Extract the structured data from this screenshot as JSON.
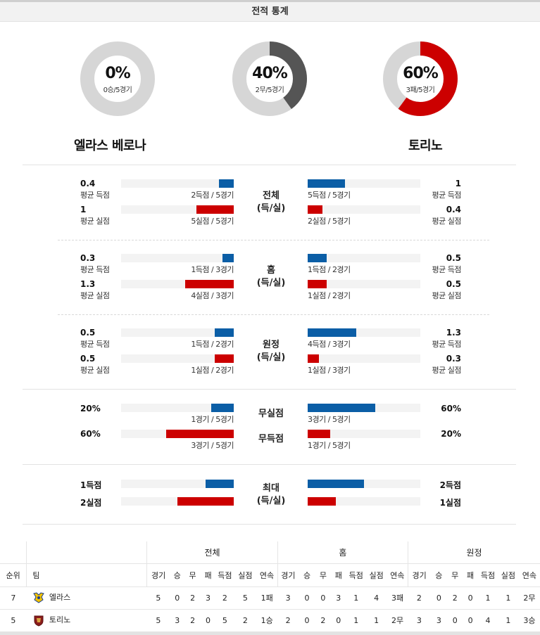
{
  "header": {
    "title": "전적 통계"
  },
  "donuts": [
    {
      "pct": "0%",
      "sub": "0승/5경기",
      "value": 0,
      "color": "#cccccc"
    },
    {
      "pct": "40%",
      "sub": "2무/5경기",
      "value": 0.4,
      "color": "#555555"
    },
    {
      "pct": "60%",
      "sub": "3패/5경기",
      "value": 0.6,
      "color": "#cc0000"
    }
  ],
  "teams": {
    "home": "엘라스 베로나",
    "away": "토리노"
  },
  "sections": {
    "total": {
      "label1": "전체",
      "label2": "(득/실)",
      "scored": {
        "home_val": "0.4",
        "home_cap": "평균 득점",
        "home_bar": "2득점 / 5경기",
        "home_frac": 0.13,
        "away_val": "1",
        "away_cap": "평균 득점",
        "away_bar": "5득점 / 5경기",
        "away_frac": 0.33
      },
      "conceded": {
        "home_val": "1",
        "home_cap": "평균 실점",
        "home_bar": "5실점 / 5경기",
        "home_frac": 0.33,
        "away_val": "0.4",
        "away_cap": "평균 실점",
        "away_bar": "2실점 / 5경기",
        "away_frac": 0.13
      }
    },
    "home": {
      "label1": "홈",
      "label2": "(득/실)",
      "scored": {
        "home_val": "0.3",
        "home_cap": "평균 득점",
        "home_bar": "1득점 / 3경기",
        "home_frac": 0.1,
        "away_val": "0.5",
        "away_cap": "평균 득점",
        "away_bar": "1득점 / 2경기",
        "away_frac": 0.17
      },
      "conceded": {
        "home_val": "1.3",
        "home_cap": "평균 실점",
        "home_bar": "4실점 / 3경기",
        "home_frac": 0.43,
        "away_val": "0.5",
        "away_cap": "평균 실점",
        "away_bar": "1실점 / 2경기",
        "away_frac": 0.17
      }
    },
    "away": {
      "label1": "원정",
      "label2": "(득/실)",
      "scored": {
        "home_val": "0.5",
        "home_cap": "평균 득점",
        "home_bar": "1득점 / 2경기",
        "home_frac": 0.17,
        "away_val": "1.3",
        "away_cap": "평균 득점",
        "away_bar": "4득점 / 3경기",
        "away_frac": 0.43
      },
      "conceded": {
        "home_val": "0.5",
        "home_cap": "평균 실점",
        "home_bar": "1실점 / 2경기",
        "home_frac": 0.17,
        "away_val": "0.3",
        "away_cap": "평균 실점",
        "away_bar": "1실점 / 3경기",
        "away_frac": 0.1
      }
    },
    "clean": {
      "label1": "무실점",
      "home_val": "20%",
      "home_bar": "1경기 / 5경기",
      "home_frac": 0.2,
      "away_val": "60%",
      "away_bar": "3경기 / 5경기",
      "away_frac": 0.6
    },
    "noscore": {
      "label1": "무득점",
      "home_val": "60%",
      "home_bar": "3경기 / 5경기",
      "home_frac": 0.6,
      "away_val": "20%",
      "away_bar": "1경기 / 5경기",
      "away_frac": 0.2
    },
    "max": {
      "label1": "최대",
      "label2": "(득/실)",
      "home_scored": "1득점",
      "home_conceded": "2실점",
      "away_scored": "2득점",
      "away_conceded": "1실점",
      "home_scored_frac": 0.25,
      "home_conceded_frac": 0.5,
      "away_scored_frac": 0.5,
      "away_conceded_frac": 0.25
    }
  },
  "standings": {
    "groups": {
      "total": "전체",
      "home": "홈",
      "away": "원정"
    },
    "headers": {
      "rank": "순위",
      "team": "팀",
      "cols": [
        "경기",
        "승",
        "무",
        "패",
        "득점",
        "실점",
        "연속"
      ]
    },
    "rows": [
      {
        "rank": "7",
        "team": "엘라스",
        "logo": "verona-logo",
        "total": [
          "5",
          "0",
          "2",
          "3",
          "2",
          "5",
          "1패"
        ],
        "home": [
          "3",
          "0",
          "0",
          "3",
          "1",
          "4",
          "3패"
        ],
        "away": [
          "2",
          "0",
          "2",
          "0",
          "1",
          "1",
          "2무"
        ]
      },
      {
        "rank": "5",
        "team": "토리노",
        "logo": "torino-logo",
        "total": [
          "5",
          "3",
          "2",
          "0",
          "5",
          "2",
          "1승"
        ],
        "home": [
          "2",
          "0",
          "2",
          "0",
          "1",
          "1",
          "2무"
        ],
        "away": [
          "3",
          "3",
          "0",
          "0",
          "4",
          "1",
          "3승"
        ]
      }
    ]
  }
}
